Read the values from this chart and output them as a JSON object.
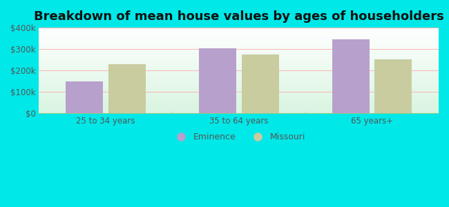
{
  "title": "Breakdown of mean house values by ages of householders",
  "categories": [
    "25 to 34 years",
    "35 to 64 years",
    "65 years+"
  ],
  "eminence_values": [
    150000,
    305000,
    345000
  ],
  "missouri_values": [
    230000,
    275000,
    252000
  ],
  "eminence_color": "#b8a0cc",
  "missouri_color": "#c8cc9f",
  "background_color": "#00e8e8",
  "ylim": [
    0,
    400000
  ],
  "yticks": [
    0,
    100000,
    200000,
    300000,
    400000
  ],
  "ytick_labels": [
    "$0",
    "$100k",
    "$200k",
    "$300k",
    "$400k"
  ],
  "legend_labels": [
    "Eminence",
    "Missouri"
  ],
  "bar_width": 0.28,
  "title_fontsize": 13,
  "tick_fontsize": 8.5,
  "legend_fontsize": 9,
  "grid_color": "#ffaaaa",
  "divider_color": "#aaddaa"
}
